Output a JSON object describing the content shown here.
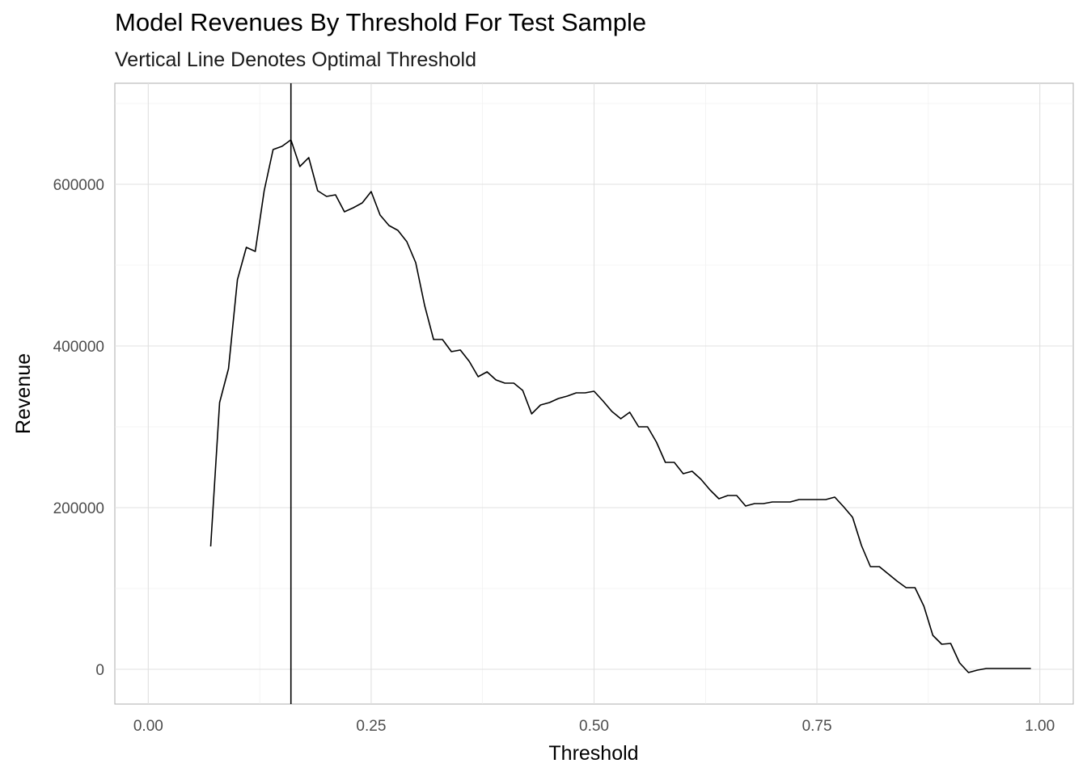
{
  "chart_data": {
    "type": "line",
    "title": "Model Revenues By Threshold For Test Sample",
    "subtitle": "Vertical Line Denotes Optimal Threshold",
    "xlabel": "Threshold",
    "ylabel": "Revenue",
    "xlim": [
      -0.0375,
      1.0375
    ],
    "ylim": [
      -43000,
      725000
    ],
    "x_ticks": [
      0.0,
      0.25,
      0.5,
      0.75,
      1.0
    ],
    "x_tick_labels": [
      "0.00",
      "0.25",
      "0.50",
      "0.75",
      "1.00"
    ],
    "y_ticks": [
      0,
      200000,
      400000,
      600000
    ],
    "y_tick_labels": [
      "0",
      "200000",
      "400000",
      "600000"
    ],
    "grid": true,
    "theme": "light",
    "vline": {
      "x": 0.16,
      "label": "Optimal Threshold"
    },
    "series": [
      {
        "x": [
          0.07,
          0.08,
          0.09,
          0.1,
          0.11,
          0.12,
          0.13,
          0.14,
          0.15,
          0.16,
          0.17,
          0.18,
          0.19,
          0.2,
          0.21,
          0.22,
          0.23,
          0.24,
          0.25,
          0.26,
          0.27,
          0.28,
          0.29,
          0.3,
          0.31,
          0.32,
          0.33,
          0.34,
          0.35,
          0.36,
          0.37,
          0.38,
          0.39,
          0.4,
          0.41,
          0.42,
          0.43,
          0.44,
          0.45,
          0.46,
          0.47,
          0.48,
          0.49,
          0.5,
          0.51,
          0.52,
          0.53,
          0.54,
          0.55,
          0.56,
          0.57,
          0.58,
          0.59,
          0.6,
          0.61,
          0.62,
          0.63,
          0.64,
          0.65,
          0.66,
          0.67,
          0.68,
          0.69,
          0.7,
          0.71,
          0.72,
          0.73,
          0.74,
          0.75,
          0.76,
          0.77,
          0.78,
          0.79,
          0.8,
          0.81,
          0.82,
          0.83,
          0.84,
          0.85,
          0.86,
          0.87,
          0.88,
          0.89,
          0.9,
          0.91,
          0.92,
          0.93,
          0.94,
          0.95,
          0.96,
          0.97,
          0.98,
          0.99
        ],
        "y": [
          152000,
          330000,
          372000,
          482000,
          522000,
          517000,
          592000,
          643000,
          647000,
          655000,
          622000,
          633000,
          592000,
          585000,
          587000,
          566000,
          571000,
          577000,
          591000,
          562000,
          549000,
          543000,
          529000,
          503000,
          450000,
          408000,
          408000,
          393000,
          395000,
          381000,
          362000,
          368000,
          358000,
          354000,
          354000,
          345000,
          316000,
          327000,
          330000,
          335000,
          338000,
          342000,
          342000,
          344000,
          332000,
          319000,
          310000,
          318000,
          300000,
          300000,
          281000,
          256000,
          256000,
          242000,
          245000,
          235000,
          222000,
          211000,
          215000,
          215000,
          202000,
          205000,
          205000,
          207000,
          207000,
          207000,
          210000,
          210000,
          210000,
          210000,
          213000,
          201000,
          188000,
          153000,
          127000,
          127000,
          118000,
          109000,
          101000,
          101000,
          78000,
          42000,
          31000,
          32000,
          8000,
          -4000,
          -1000,
          1000,
          1000,
          1000,
          1000,
          1000,
          1000
        ]
      }
    ]
  }
}
